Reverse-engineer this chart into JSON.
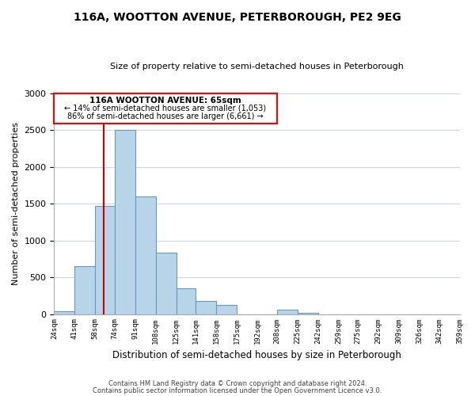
{
  "title": "116A, WOOTTON AVENUE, PETERBOROUGH, PE2 9EG",
  "subtitle": "Size of property relative to semi-detached houses in Peterborough",
  "xlabel": "Distribution of semi-detached houses by size in Peterborough",
  "ylabel": "Number of semi-detached properties",
  "bar_color": "#b8d4e8",
  "bar_edge_color": "#6699bb",
  "marker_line_color": "#cc0000",
  "marker_value": 65,
  "annotation_title": "116A WOOTTON AVENUE: 65sqm",
  "annotation_line1": "← 14% of semi-detached houses are smaller (1,053)",
  "annotation_line2": "86% of semi-detached houses are larger (6,661) →",
  "footnote1": "Contains HM Land Registry data © Crown copyright and database right 2024.",
  "footnote2": "Contains public sector information licensed under the Open Government Licence v3.0.",
  "bin_edges": [
    24,
    41,
    58,
    74,
    91,
    108,
    125,
    141,
    158,
    175,
    192,
    208,
    225,
    242,
    259,
    275,
    292,
    309,
    326,
    342,
    359
  ],
  "bin_labels": [
    "24sqm",
    "41sqm",
    "58sqm",
    "74sqm",
    "91sqm",
    "108sqm",
    "125sqm",
    "141sqm",
    "158sqm",
    "175sqm",
    "192sqm",
    "208sqm",
    "225sqm",
    "242sqm",
    "259sqm",
    "275sqm",
    "292sqm",
    "309sqm",
    "326sqm",
    "342sqm",
    "359sqm"
  ],
  "counts": [
    40,
    650,
    1470,
    2500,
    1600,
    830,
    350,
    175,
    120,
    0,
    0,
    55,
    20,
    0,
    0,
    0,
    0,
    0,
    0,
    0
  ],
  "ylim": [
    0,
    3000
  ],
  "yticks": [
    0,
    500,
    1000,
    1500,
    2000,
    2500,
    3000
  ],
  "background_color": "#ffffff",
  "grid_color": "#c8d8e8"
}
